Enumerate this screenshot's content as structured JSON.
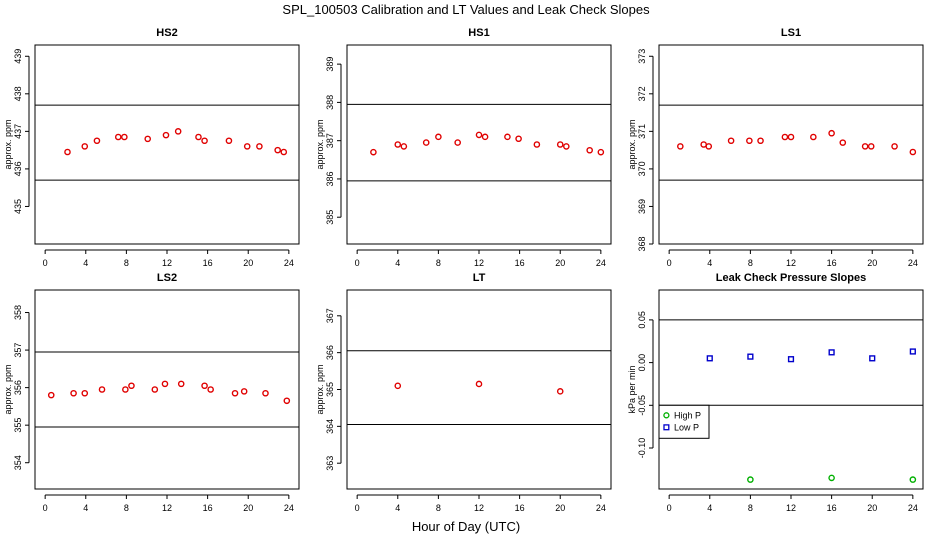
{
  "figure": {
    "title": "SPL_100503  Calibration and LT Values and Leak Check Slopes",
    "xlabel": "Hour of Day (UTC)"
  },
  "chart_data": [
    {
      "type": "scatter",
      "title": "HS2",
      "ylabel": "approx. ppm",
      "xlim": [
        -1,
        25
      ],
      "ylim": [
        434,
        439.3
      ],
      "xticks": [
        0,
        4,
        8,
        12,
        16,
        20,
        24
      ],
      "yticks": [
        435,
        436,
        437,
        438,
        439
      ],
      "hlines": [
        437.7,
        435.7
      ],
      "series": [
        {
          "color": "#e00000",
          "marker": "circle",
          "x": [
            2.2,
            3.9,
            5.1,
            7.2,
            7.8,
            10.1,
            11.9,
            13.1,
            15.1,
            15.7,
            18.1,
            19.9,
            21.1,
            22.9,
            23.5
          ],
          "y": [
            436.45,
            436.6,
            436.75,
            436.85,
            436.85,
            436.8,
            436.9,
            437.0,
            436.85,
            436.75,
            436.75,
            436.6,
            436.6,
            436.5,
            436.45
          ]
        }
      ]
    },
    {
      "type": "scatter",
      "title": "HS1",
      "ylabel": "approx. ppm",
      "xlim": [
        -1,
        25
      ],
      "ylim": [
        384.3,
        389.5
      ],
      "xticks": [
        0,
        4,
        8,
        12,
        16,
        20,
        24
      ],
      "yticks": [
        385,
        386,
        387,
        388,
        389
      ],
      "hlines": [
        387.95,
        385.95
      ],
      "series": [
        {
          "color": "#e00000",
          "marker": "circle",
          "x": [
            1.6,
            4.0,
            4.6,
            6.8,
            8.0,
            9.9,
            12.0,
            12.6,
            14.8,
            15.9,
            17.7,
            20.0,
            20.6,
            22.9,
            24.0
          ],
          "y": [
            386.7,
            386.9,
            386.85,
            386.95,
            387.1,
            386.95,
            387.15,
            387.1,
            387.1,
            387.05,
            386.9,
            386.9,
            386.85,
            386.75,
            386.7
          ]
        }
      ]
    },
    {
      "type": "scatter",
      "title": "LS1",
      "ylabel": "approx. ppm",
      "xlim": [
        -1,
        25
      ],
      "ylim": [
        368.0,
        373.3
      ],
      "xticks": [
        0,
        4,
        8,
        12,
        16,
        20,
        24
      ],
      "yticks": [
        368,
        369,
        370,
        371,
        372,
        373
      ],
      "hlines": [
        371.7,
        369.7
      ],
      "series": [
        {
          "color": "#e00000",
          "marker": "circle",
          "x": [
            1.1,
            3.4,
            3.9,
            6.1,
            7.9,
            9.0,
            11.4,
            12.0,
            14.2,
            16.0,
            17.1,
            19.3,
            19.9,
            22.2,
            24.0
          ],
          "y": [
            370.6,
            370.65,
            370.6,
            370.75,
            370.75,
            370.75,
            370.85,
            370.85,
            370.85,
            370.95,
            370.7,
            370.6,
            370.6,
            370.6,
            370.45
          ]
        }
      ]
    },
    {
      "type": "scatter",
      "title": "LS2",
      "ylabel": "approx. ppm",
      "xlim": [
        -1,
        25
      ],
      "ylim": [
        353.3,
        358.6
      ],
      "xticks": [
        0,
        4,
        8,
        12,
        16,
        20,
        24
      ],
      "yticks": [
        354,
        355,
        356,
        357,
        358
      ],
      "hlines": [
        356.95,
        354.95
      ],
      "series": [
        {
          "color": "#e00000",
          "marker": "circle",
          "x": [
            0.6,
            2.8,
            3.9,
            5.6,
            7.9,
            8.5,
            10.8,
            11.8,
            13.4,
            15.7,
            16.3,
            18.7,
            19.6,
            21.7,
            23.8
          ],
          "y": [
            355.8,
            355.85,
            355.85,
            355.95,
            355.95,
            356.05,
            355.95,
            356.1,
            356.1,
            356.05,
            355.95,
            355.85,
            355.9,
            355.85,
            355.65
          ]
        }
      ]
    },
    {
      "type": "scatter",
      "title": "LT",
      "ylabel": "approx. ppm",
      "xlim": [
        -1,
        25
      ],
      "ylim": [
        362.3,
        367.7
      ],
      "xticks": [
        0,
        4,
        8,
        12,
        16,
        20,
        24
      ],
      "yticks": [
        363,
        364,
        365,
        366,
        367
      ],
      "hlines": [
        366.05,
        364.05
      ],
      "series": [
        {
          "color": "#e00000",
          "marker": "circle",
          "x": [
            4.0,
            12.0,
            20.0
          ],
          "y": [
            365.1,
            365.15,
            364.95
          ]
        }
      ]
    },
    {
      "type": "scatter",
      "title": "Leak Check Pressure Slopes",
      "ylabel": "kPa per min",
      "xlim": [
        -1,
        25
      ],
      "ylim": [
        -0.148,
        0.085
      ],
      "xticks": [
        0,
        4,
        8,
        12,
        16,
        20,
        24
      ],
      "yticks": [
        -0.1,
        -0.05,
        0.0,
        0.05
      ],
      "ytick_labels": [
        "-0.10",
        "-0.05",
        "0.00",
        "0.05"
      ],
      "hlines": [
        0.05,
        -0.05
      ],
      "legend": {
        "position": "bottom-left",
        "entries": [
          "High P",
          "Low P"
        ]
      },
      "series": [
        {
          "name": "High P",
          "color": "#00b000",
          "marker": "circle",
          "x": [
            8,
            16,
            24
          ],
          "y": [
            -0.137,
            -0.135,
            -0.137
          ]
        },
        {
          "name": "Low P",
          "color": "#0000cc",
          "marker": "square",
          "x": [
            4,
            8,
            12,
            16,
            20,
            24
          ],
          "y": [
            0.005,
            0.007,
            0.004,
            0.012,
            0.005,
            0.013
          ]
        }
      ]
    }
  ]
}
